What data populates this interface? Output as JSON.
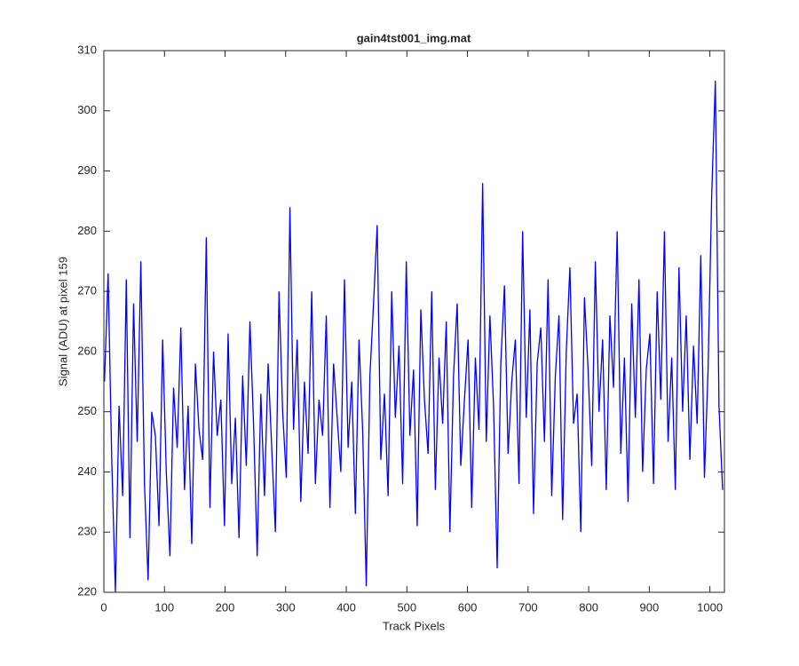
{
  "chart_data": {
    "type": "line",
    "title": "gain4tst001_img.mat",
    "x_label": "Track Pixels",
    "y_label": "Signal (ADU) at pixel 159",
    "x": [
      1,
      7,
      13,
      19,
      25,
      31,
      37,
      43,
      49,
      55,
      61,
      67,
      73,
      79,
      85,
      91,
      97,
      103,
      109,
      115,
      121,
      127,
      133,
      139,
      145,
      151,
      157,
      163,
      169,
      175,
      181,
      187,
      193,
      199,
      205,
      211,
      217,
      223,
      229,
      235,
      241,
      247,
      253,
      259,
      265,
      271,
      277,
      283,
      289,
      295,
      301,
      307,
      313,
      319,
      325,
      331,
      337,
      343,
      349,
      355,
      361,
      367,
      373,
      379,
      385,
      391,
      397,
      403,
      409,
      415,
      421,
      427,
      433,
      439,
      445,
      451,
      457,
      463,
      469,
      475,
      481,
      487,
      493,
      499,
      505,
      511,
      517,
      523,
      529,
      535,
      541,
      547,
      553,
      559,
      565,
      571,
      577,
      583,
      589,
      595,
      601,
      607,
      613,
      619,
      625,
      631,
      637,
      643,
      649,
      655,
      661,
      667,
      673,
      679,
      685,
      691,
      697,
      703,
      709,
      715,
      721,
      727,
      733,
      739,
      745,
      751,
      757,
      763,
      769,
      775,
      781,
      787,
      793,
      799,
      805,
      811,
      817,
      823,
      829,
      835,
      841,
      847,
      853,
      859,
      865,
      871,
      877,
      883,
      889,
      895,
      901,
      907,
      913,
      919,
      925,
      931,
      937,
      943,
      949,
      955,
      961,
      967,
      973,
      979,
      985,
      991,
      997,
      1003,
      1009,
      1015,
      1021
    ],
    "series": [
      {
        "color": "#0000ff",
        "values": [
          255,
          273,
          242,
          220,
          251,
          236,
          272,
          229,
          268,
          245,
          275,
          238,
          222,
          250,
          246,
          231,
          262,
          240,
          226,
          254,
          244,
          264,
          237,
          251,
          228,
          258,
          247,
          242,
          279,
          234,
          260,
          246,
          252,
          231,
          263,
          238,
          249,
          229,
          256,
          241,
          265,
          248,
          226,
          253,
          236,
          258,
          244,
          230,
          270,
          250,
          239,
          284,
          247,
          262,
          235,
          255,
          243,
          270,
          238,
          252,
          246,
          266,
          234,
          258,
          249,
          240,
          272,
          244,
          255,
          233,
          262,
          247,
          221,
          256,
          268,
          281,
          242,
          253,
          236,
          270,
          249,
          261,
          238,
          275,
          246,
          257,
          231,
          267,
          252,
          243,
          270,
          237,
          259,
          248,
          265,
          230,
          256,
          268,
          241,
          252,
          262,
          234,
          259,
          247,
          288,
          245,
          266,
          251,
          224,
          258,
          271,
          243,
          255,
          262,
          238,
          280,
          249,
          267,
          233,
          258,
          264,
          245,
          272,
          236,
          256,
          266,
          232,
          260,
          274,
          248,
          253,
          230,
          269,
          257,
          241,
          275,
          250,
          262,
          237,
          266,
          254,
          280,
          243,
          259,
          235,
          268,
          249,
          272,
          240,
          257,
          263,
          238,
          270,
          252,
          280,
          245,
          259,
          237,
          274,
          250,
          266,
          242,
          261,
          248,
          276,
          239,
          257,
          286,
          305,
          251,
          237
        ]
      }
    ],
    "xlim": [
      0,
      1024
    ],
    "ylim": [
      220,
      310
    ],
    "xticks": [
      0,
      100,
      200,
      300,
      400,
      500,
      600,
      700,
      800,
      900,
      1000
    ],
    "yticks": [
      220,
      230,
      240,
      250,
      260,
      270,
      280,
      290,
      300,
      310
    ]
  }
}
